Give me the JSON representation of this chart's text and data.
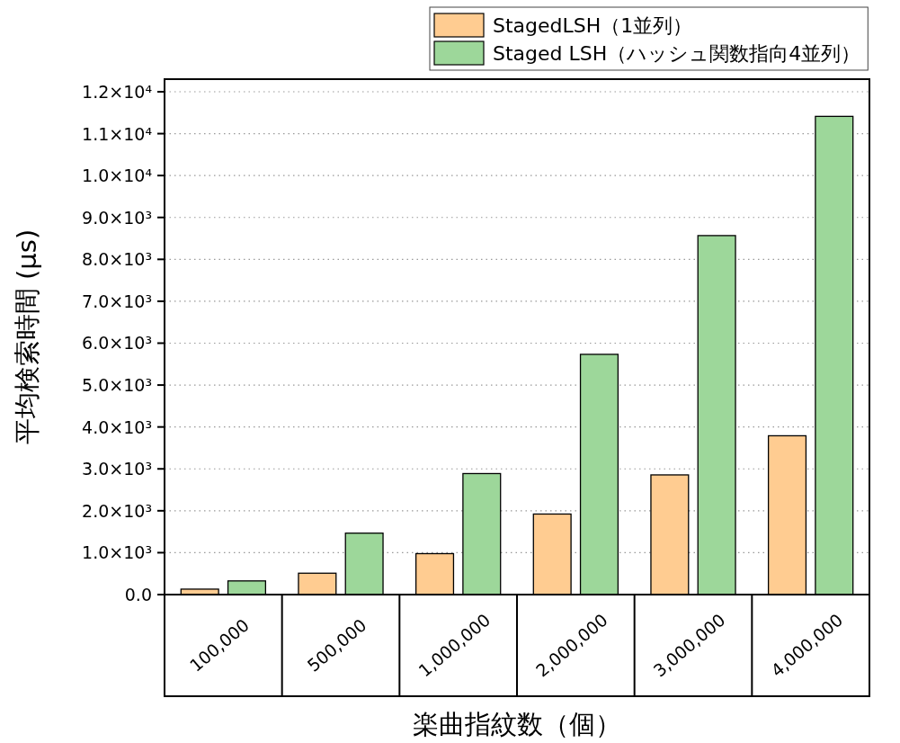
{
  "chart_data": {
    "type": "bar",
    "xlabel": "楽曲指紋数（個）",
    "ylabel": "平均検索時間 (μs)",
    "categories": [
      "100,000",
      "500,000",
      "1,000,000",
      "2,000,000",
      "3,000,000",
      "4,000,000"
    ],
    "series": [
      {
        "name": "StagedLSH（1並列）",
        "color": "#ffcc91",
        "values": [
          130,
          510,
          977,
          1922,
          2856,
          3790
        ]
      },
      {
        "name": "Staged LSH（ハッシュ関数指向4並列）",
        "color": "#9dd79a",
        "values": [
          326,
          1466,
          2888,
          5733,
          8567,
          11412
        ]
      }
    ],
    "ylim": [
      0,
      12300
    ],
    "yticks": [
      {
        "value": 0,
        "label": "0.0"
      },
      {
        "value": 1000,
        "label": "1.0×10³"
      },
      {
        "value": 2000,
        "label": "2.0×10³"
      },
      {
        "value": 3000,
        "label": "3.0×10³"
      },
      {
        "value": 4000,
        "label": "4.0×10³"
      },
      {
        "value": 5000,
        "label": "5.0×10³"
      },
      {
        "value": 6000,
        "label": "6.0×10³"
      },
      {
        "value": 7000,
        "label": "7.0×10³"
      },
      {
        "value": 8000,
        "label": "8.0×10³"
      },
      {
        "value": 9000,
        "label": "9.0×10³"
      },
      {
        "value": 10000,
        "label": "1.0×10⁴"
      },
      {
        "value": 11000,
        "label": "1.1×10⁴"
      },
      {
        "value": 12000,
        "label": "1.2×10⁴"
      }
    ],
    "grid": "y",
    "legend": "top right"
  }
}
